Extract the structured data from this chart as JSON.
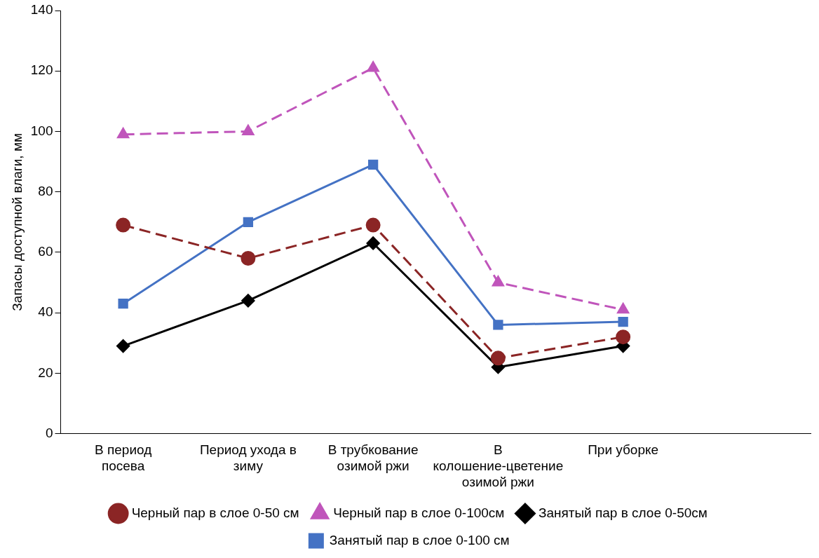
{
  "chart_data": {
    "type": "line",
    "ylabel": "Запасы доступной влаги, мм",
    "categories": [
      "В период посева",
      "Период ухода в зиму",
      "В трубкование озимой ржи",
      "В колошение-цветение озимой ржи",
      "При уборке",
      null
    ],
    "ylim": [
      0,
      140
    ],
    "yticks": [
      0,
      20,
      40,
      60,
      80,
      100,
      120,
      140
    ],
    "grid": false,
    "legend": "bottom",
    "series": [
      {
        "name": "Черный пар в слое 0-50 см",
        "color": "#8b2525",
        "marker": "circle",
        "line_style": "dashed",
        "values": [
          69,
          58,
          69,
          25,
          32,
          null
        ]
      },
      {
        "name": "Черный пар в слое 0-100см",
        "color": "#c055bb",
        "marker": "triangle",
        "line_style": "dashed",
        "values": [
          99,
          100,
          121,
          50,
          41,
          null
        ]
      },
      {
        "name": "Занятый пар в слое 0-50см",
        "color": "#000000",
        "marker": "diamond",
        "line_style": "solid",
        "values": [
          29,
          44,
          63,
          22,
          29,
          null
        ]
      },
      {
        "name": "Занятый пар в слое 0-100 см",
        "color": "#4472c4",
        "marker": "square",
        "line_style": "solid",
        "values": [
          43,
          70,
          89,
          36,
          37,
          null
        ]
      }
    ]
  }
}
